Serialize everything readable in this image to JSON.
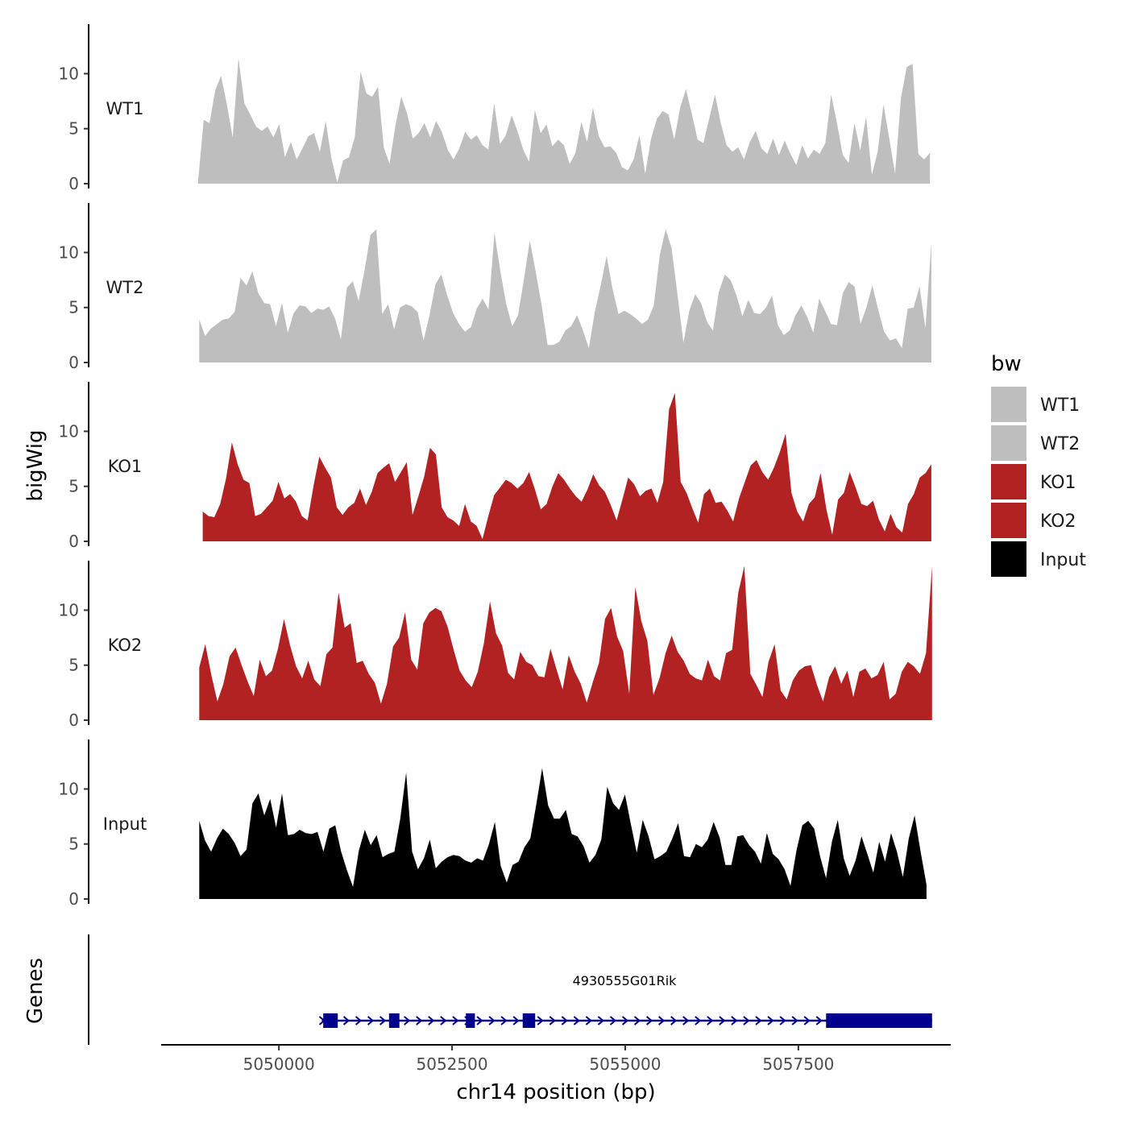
{
  "chart_data": {
    "type": "area",
    "title": "",
    "xlabel": "chr14 position (bp)",
    "ylabel": "bigWig",
    "gene_panel_label": "Genes",
    "legend_title": "bw",
    "xlim": [
      5048300,
      5059700
    ],
    "x_ticks": [
      5050000,
      5052500,
      5055000,
      5057500
    ],
    "x_tick_labels": [
      "5050000",
      "5052500",
      "5055000",
      "5057500"
    ],
    "ylim": [
      0,
      14.5
    ],
    "y_ticks": [
      0,
      5,
      10
    ],
    "y_tick_labels": [
      "0",
      "5",
      "10"
    ],
    "series": [
      {
        "name": "WT1",
        "color": "#bebebe",
        "x_start": 5048830,
        "x_end": 5059400,
        "values": [
          0,
          5.8,
          5.5,
          8.5,
          9.8,
          7.2,
          4.2,
          11.4,
          7.3,
          6.3,
          5.2,
          4.8,
          5.2,
          4.2,
          5.4,
          2.4,
          3.8,
          2.2,
          3.2,
          4.3,
          4.6,
          2.9,
          5.7,
          2.3,
          0.1,
          2.1,
          2.4,
          4.2,
          10.2,
          8.2,
          7.9,
          8.8,
          3.3,
          1.8,
          5.3,
          7.9,
          6.4,
          4.1,
          4.6,
          5.5,
          4.2,
          5.7,
          4.7,
          3.1,
          2.2,
          3.2,
          4.7,
          4.0,
          4.4,
          3.5,
          3.1,
          7.3,
          3.6,
          4.4,
          6.2,
          4.8,
          3.1,
          2.0,
          6.7,
          4.6,
          5.4,
          3.4,
          4.0,
          3.5,
          1.8,
          2.8,
          5.6,
          3.8,
          6.9,
          4.3,
          3.3,
          3.4,
          2.8,
          1.5,
          1.2,
          2.2,
          4.4,
          0.9,
          4.1,
          5.9,
          6.6,
          6.3,
          4.0,
          6.9,
          8.6,
          6.4,
          4.0,
          3.7,
          5.9,
          8.1,
          5.5,
          3.5,
          2.9,
          3.3,
          2.2,
          3.8,
          4.8,
          3.2,
          2.7,
          4.1,
          2.6,
          3.9,
          2.7,
          1.7,
          3.5,
          2.3,
          3.1,
          2.7,
          3.7,
          8.1,
          5.5,
          2.6,
          1.9,
          5.5,
          3.0,
          6.1,
          0.8,
          2.9,
          7.2,
          4.1,
          0.9,
          7.8,
          10.6,
          10.9,
          2.7,
          2.2,
          2.8
        ]
      },
      {
        "name": "WT2",
        "color": "#bebebe",
        "x_start": 5048850,
        "x_end": 5059420,
        "values": [
          3.9,
          2.4,
          3.1,
          3.5,
          3.9,
          4.0,
          4.6,
          7.7,
          7.0,
          8.3,
          6.3,
          5.4,
          5.3,
          3.3,
          5.4,
          2.7,
          4.5,
          5.2,
          5.1,
          4.5,
          4.9,
          4.8,
          5.1,
          4.0,
          2.1,
          6.8,
          7.4,
          5.6,
          8.4,
          11.6,
          12.1,
          4.4,
          5.3,
          3.0,
          5.0,
          5.3,
          5.1,
          4.6,
          2.0,
          4.3,
          7.1,
          8.0,
          6.1,
          4.5,
          3.5,
          2.8,
          3.2,
          4.9,
          5.8,
          4.8,
          11.8,
          8.3,
          5.3,
          3.3,
          4.3,
          7.6,
          11.1,
          8.2,
          5.2,
          1.6,
          1.6,
          1.9,
          2.9,
          3.3,
          4.3,
          2.9,
          1.3,
          4.6,
          7.0,
          9.7,
          6.7,
          4.4,
          4.7,
          4.4,
          4.0,
          3.5,
          3.9,
          5.2,
          9.8,
          12.1,
          10.4,
          6.2,
          1.8,
          4.7,
          6.2,
          5.4,
          3.7,
          2.9,
          6.4,
          8.0,
          7.5,
          6.1,
          4.2,
          5.7,
          4.5,
          4.4,
          5.0,
          6.1,
          3.4,
          2.5,
          2.9,
          4.3,
          5.2,
          4.1,
          2.7,
          5.8,
          4.7,
          3.5,
          3.4,
          6.3,
          7.3,
          6.9,
          3.5,
          5.0,
          7.0,
          4.8,
          2.8,
          2.0,
          2.2,
          1.3,
          4.9,
          5.0,
          6.9,
          3.1,
          10.9
        ]
      },
      {
        "name": "KO1",
        "color": "#b22222",
        "x_start": 5048900,
        "x_end": 5059420,
        "values": [
          2.7,
          2.3,
          2.2,
          3.4,
          5.7,
          9.0,
          7.0,
          5.6,
          5.3,
          2.3,
          2.5,
          3.1,
          3.7,
          5.4,
          3.9,
          4.3,
          3.6,
          2.3,
          1.9,
          5.0,
          7.7,
          6.7,
          5.8,
          3.1,
          2.4,
          3.1,
          3.5,
          4.8,
          3.3,
          4.5,
          6.2,
          6.7,
          7.1,
          5.4,
          6.3,
          7.2,
          2.4,
          4.1,
          5.9,
          8.5,
          7.9,
          3.1,
          2.2,
          1.9,
          1.4,
          3.4,
          1.8,
          1.4,
          0.2,
          2.3,
          4.2,
          4.9,
          5.6,
          5.3,
          4.8,
          5.3,
          6.3,
          4.7,
          2.9,
          3.4,
          5.0,
          6.2,
          5.6,
          4.8,
          4.1,
          3.6,
          4.7,
          6.1,
          5.1,
          4.5,
          3.3,
          1.9,
          3.8,
          5.8,
          5.2,
          4.1,
          4.6,
          4.8,
          3.5,
          5.4,
          12.0,
          13.5,
          5.4,
          4.4,
          3.0,
          1.7,
          4.3,
          4.8,
          3.5,
          3.6,
          2.8,
          1.8,
          3.9,
          5.4,
          6.9,
          7.4,
          6.3,
          5.6,
          6.7,
          8.1,
          9.8,
          4.4,
          2.7,
          1.8,
          3.4,
          4.0,
          6.2,
          2.9,
          0.6,
          3.8,
          4.4,
          6.3,
          4.9,
          3.4,
          3.2,
          3.7,
          2.0,
          0.9,
          2.5,
          1.3,
          0.8,
          3.4,
          4.3,
          5.8,
          6.2,
          7.0
        ]
      },
      {
        "name": "KO2",
        "color": "#b22222",
        "x_start": 5048850,
        "x_end": 5059430,
        "values": [
          4.8,
          6.9,
          4.1,
          1.7,
          3.3,
          5.8,
          6.6,
          5.0,
          3.5,
          2.2,
          5.5,
          4.0,
          4.5,
          6.5,
          9.2,
          6.8,
          4.9,
          3.8,
          5.4,
          3.7,
          3.1,
          6.0,
          6.6,
          11.6,
          8.4,
          8.8,
          5.2,
          5.4,
          4.2,
          3.4,
          1.5,
          3.3,
          6.7,
          7.5,
          9.8,
          5.5,
          4.6,
          8.8,
          9.8,
          10.2,
          9.9,
          8.5,
          6.4,
          4.5,
          3.6,
          3.0,
          4.4,
          7.0,
          10.8,
          7.9,
          6.8,
          4.3,
          3.7,
          6.2,
          5.3,
          5.0,
          4.0,
          3.9,
          6.5,
          4.6,
          2.8,
          5.9,
          4.4,
          3.3,
          1.6,
          3.5,
          5.2,
          9.2,
          10.2,
          7.6,
          6.3,
          2.4,
          12.1,
          9.0,
          7.2,
          2.3,
          3.8,
          6.1,
          7.7,
          6.2,
          5.4,
          4.2,
          3.8,
          3.6,
          5.5,
          4.0,
          3.6,
          6.1,
          6.4,
          11.6,
          14.0,
          4.2,
          3.2,
          2.1,
          5.3,
          6.9,
          2.7,
          1.9,
          3.6,
          4.5,
          4.9,
          5.0,
          3.2,
          1.7,
          3.9,
          4.9,
          3.3,
          4.5,
          2.1,
          4.4,
          4.7,
          3.8,
          4.1,
          5.3,
          1.9,
          2.4,
          4.4,
          5.3,
          4.9,
          4.2,
          6.1,
          14.0
        ]
      },
      {
        "name": "Input",
        "color": "#000000",
        "x_start": 5048850,
        "x_end": 5059350,
        "values": [
          7.1,
          5.3,
          4.3,
          5.5,
          6.4,
          5.9,
          5.1,
          3.9,
          4.5,
          8.7,
          9.6,
          7.6,
          9.1,
          6.5,
          9.6,
          5.8,
          5.9,
          6.3,
          6.0,
          5.9,
          6.1,
          4.3,
          6.4,
          6.7,
          4.3,
          2.6,
          1.1,
          4.4,
          6.3,
          4.9,
          5.8,
          3.8,
          4.1,
          4.3,
          7.3,
          11.5,
          4.3,
          2.7,
          3.7,
          5.4,
          2.8,
          3.4,
          3.8,
          4.0,
          3.9,
          3.5,
          3.3,
          3.7,
          3.5,
          5.0,
          7.0,
          3.0,
          1.5,
          3.1,
          3.4,
          4.7,
          5.5,
          8.6,
          11.9,
          8.5,
          7.3,
          7.3,
          8.1,
          5.9,
          5.7,
          4.8,
          3.3,
          4.0,
          5.4,
          10.2,
          8.7,
          8.1,
          9.5,
          6.8,
          4.2,
          7.2,
          5.7,
          3.6,
          3.9,
          4.3,
          5.5,
          6.9,
          3.9,
          3.8,
          5.0,
          4.7,
          5.4,
          7.0,
          5.6,
          3.1,
          3.1,
          5.7,
          5.8,
          4.9,
          4.3,
          3.2,
          6.0,
          4.1,
          3.6,
          2.7,
          1.2,
          4.4,
          6.7,
          7.1,
          6.4,
          3.9,
          1.9,
          5.2,
          7.2,
          3.7,
          2.1,
          3.5,
          5.7,
          4.1,
          2.4,
          5.2,
          3.4,
          6.0,
          4.3,
          2.0,
          5.5,
          7.6,
          4.3,
          1.3
        ]
      }
    ],
    "gene": {
      "name": "4930555G01Rik",
      "color": "#00008b",
      "strand": "+",
      "start": 5050620,
      "end": 5059430,
      "exons": [
        [
          5050640,
          5050850
        ],
        [
          5051590,
          5051740
        ],
        [
          5052700,
          5052830
        ],
        [
          5053520,
          5053700
        ],
        [
          5057900,
          5059430
        ]
      ]
    }
  }
}
